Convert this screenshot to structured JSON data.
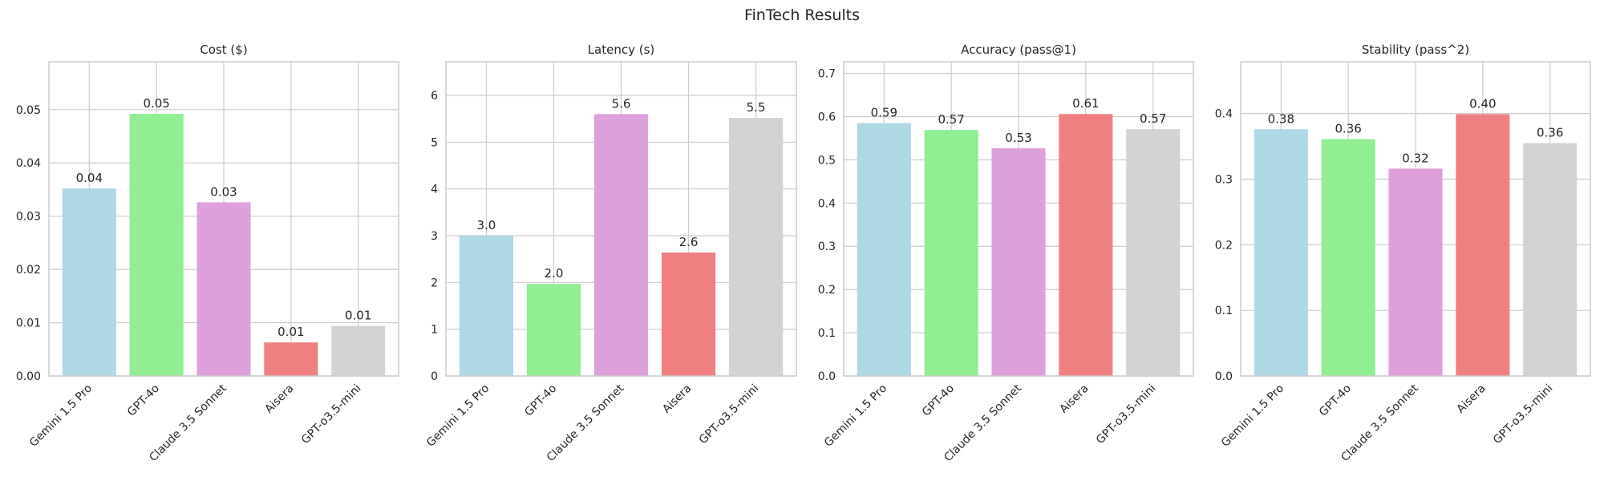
{
  "figure": {
    "title": "FinTech Results"
  },
  "chart_data": [
    {
      "type": "bar",
      "title": "Cost ($)",
      "categories": [
        "Gemini 1.5 Pro",
        "GPT-4o",
        "Claude 3.5 Sonnet",
        "Aisera",
        "GPT-o3.5-mini"
      ],
      "values": [
        0.0352,
        0.0492,
        0.0326,
        0.0063,
        0.0094
      ],
      "value_labels": [
        "0.04",
        "0.05",
        "0.03",
        "0.01",
        "0.01"
      ],
      "ylim": [
        0,
        0.059
      ],
      "yticks": [
        0.0,
        0.01,
        0.02,
        0.03,
        0.04,
        0.05
      ],
      "ytick_labels": [
        "0.00",
        "0.01",
        "0.02",
        "0.03",
        "0.04",
        "0.05"
      ],
      "colors": [
        "#add8e6",
        "#90ee90",
        "#dda0dd",
        "#f08080",
        "#d3d3d3"
      ],
      "grid": true
    },
    {
      "type": "bar",
      "title": "Latency (s)",
      "categories": [
        "Gemini 1.5 Pro",
        "GPT-4o",
        "Claude 3.5 Sonnet",
        "Aisera",
        "GPT-o3.5-mini"
      ],
      "values": [
        3.0,
        1.97,
        5.6,
        2.64,
        5.52
      ],
      "value_labels": [
        "3.0",
        "2.0",
        "5.6",
        "2.6",
        "5.5"
      ],
      "ylim": [
        0,
        6.72
      ],
      "yticks": [
        0,
        1,
        2,
        3,
        4,
        5,
        6
      ],
      "ytick_labels": [
        "0",
        "1",
        "2",
        "3",
        "4",
        "5",
        "6"
      ],
      "colors": [
        "#add8e6",
        "#90ee90",
        "#dda0dd",
        "#f08080",
        "#d3d3d3"
      ],
      "grid": true
    },
    {
      "type": "bar",
      "title": "Accuracy (pass@1)",
      "categories": [
        "Gemini 1.5 Pro",
        "GPT-4o",
        "Claude 3.5 Sonnet",
        "Aisera",
        "GPT-o3.5-mini"
      ],
      "values": [
        0.585,
        0.569,
        0.527,
        0.606,
        0.571
      ],
      "value_labels": [
        "0.59",
        "0.57",
        "0.53",
        "0.61",
        "0.57"
      ],
      "ylim": [
        0,
        0.727
      ],
      "yticks": [
        0.0,
        0.1,
        0.2,
        0.3,
        0.4,
        0.5,
        0.6,
        0.7
      ],
      "ytick_labels": [
        "0.0",
        "0.1",
        "0.2",
        "0.3",
        "0.4",
        "0.5",
        "0.6",
        "0.7"
      ],
      "colors": [
        "#add8e6",
        "#90ee90",
        "#dda0dd",
        "#f08080",
        "#d3d3d3"
      ],
      "grid": true
    },
    {
      "type": "bar",
      "title": "Stability (pass^2)",
      "categories": [
        "Gemini 1.5 Pro",
        "GPT-4o",
        "Claude 3.5 Sonnet",
        "Aisera",
        "GPT-o3.5-mini"
      ],
      "values": [
        0.376,
        0.361,
        0.316,
        0.399,
        0.355
      ],
      "value_labels": [
        "0.38",
        "0.36",
        "0.32",
        "0.40",
        "0.36"
      ],
      "ylim": [
        0,
        0.479
      ],
      "yticks": [
        0.0,
        0.1,
        0.2,
        0.3,
        0.4
      ],
      "ytick_labels": [
        "0.0",
        "0.1",
        "0.2",
        "0.3",
        "0.4"
      ],
      "colors": [
        "#add8e6",
        "#90ee90",
        "#dda0dd",
        "#f08080",
        "#d3d3d3"
      ],
      "grid": true
    }
  ]
}
